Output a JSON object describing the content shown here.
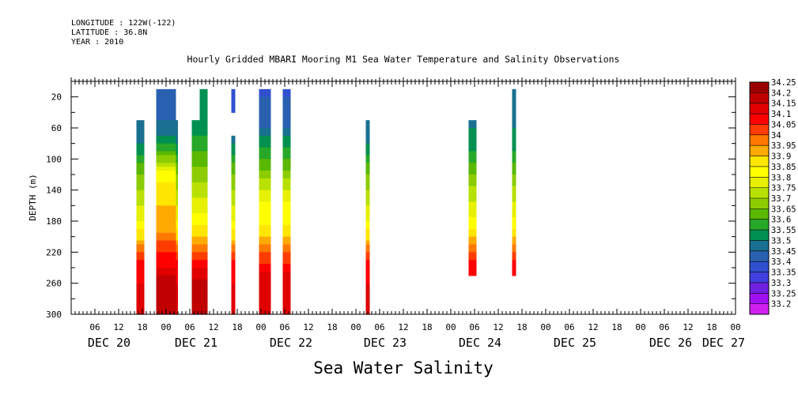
{
  "header": {
    "longitude": "LONGITUDE : 122W(-122)",
    "latitude": "LATITUDE : 36.8N",
    "year": "YEAR : 2010"
  },
  "title": "Hourly Gridded MBARI Mooring M1 Sea Water Temperature and Salinity Observations",
  "bottom_label": "Sea Water Salinity",
  "chart_data": {
    "type": "heatmap",
    "ylabel": "DEPTH (m)",
    "xlabel": "",
    "y_axis": {
      "range": [
        300,
        0
      ],
      "ticks": [
        20,
        60,
        100,
        140,
        180,
        220,
        260,
        300
      ],
      "inverted": true
    },
    "x_axis": {
      "range_hours": [
        0,
        168
      ],
      "hour_tick_labels": [
        "06",
        "12",
        "18",
        "00",
        "06",
        "12",
        "18",
        "00",
        "06",
        "12",
        "18",
        "00",
        "06",
        "12",
        "18",
        "00",
        "06",
        "12",
        "18",
        "00",
        "06",
        "12",
        "18",
        "00",
        "06",
        "12",
        "18",
        "00"
      ],
      "day_labels": [
        "DEC 20",
        "DEC 21",
        "DEC 22",
        "DEC 23",
        "DEC 24",
        "DEC 25",
        "DEC 26",
        "DEC 27"
      ]
    },
    "colorbar": {
      "levels": [
        34.25,
        34.2,
        34.15,
        34.1,
        34.05,
        34,
        33.95,
        33.9,
        33.85,
        33.8,
        33.75,
        33.7,
        33.65,
        33.6,
        33.55,
        33.5,
        33.45,
        33.4,
        33.35,
        33.3,
        33.25,
        33.2
      ],
      "colors": [
        "#9a0000",
        "#c00000",
        "#e00000",
        "#ff0000",
        "#ff3c00",
        "#ff7800",
        "#ffaa00",
        "#ffe600",
        "#ffff00",
        "#e6f000",
        "#b8e000",
        "#8ccc00",
        "#5ab800",
        "#28a828",
        "#009050",
        "#1a7090",
        "#2a60b0",
        "#3050d0",
        "#4040e0",
        "#7020e0",
        "#a010f0",
        "#d020f0"
      ]
    },
    "columns": [
      {
        "start_hour": 16.5,
        "end_hour": 18.5,
        "top": 60,
        "bottom": 300,
        "profile": "A"
      },
      {
        "start_hour": 21.5,
        "end_hour": 23.0,
        "top": 20,
        "bottom": 300,
        "profile": "B"
      },
      {
        "start_hour": 23.0,
        "end_hour": 26.5,
        "top": 20,
        "bottom": 300,
        "profile": "B"
      },
      {
        "start_hour": 26.5,
        "end_hour": 27.0,
        "top": 60,
        "bottom": 300,
        "profile": "A"
      },
      {
        "start_hour": 30.5,
        "end_hour": 32.5,
        "top": 60,
        "bottom": 300,
        "profile": "C"
      },
      {
        "start_hour": 32.5,
        "end_hour": 34.5,
        "top": 20,
        "bottom": 300,
        "profile": "C"
      },
      {
        "start_hour": 40.5,
        "end_hour": 41.5,
        "top": 20,
        "bottom": 40,
        "profile": "D"
      },
      {
        "start_hour": 40.5,
        "end_hour": 41.5,
        "top": 80,
        "bottom": 300,
        "profile": "A"
      },
      {
        "start_hour": 47.5,
        "end_hour": 50.5,
        "top": 20,
        "bottom": 300,
        "profile": "E"
      },
      {
        "start_hour": 53.5,
        "end_hour": 55.5,
        "top": 20,
        "bottom": 300,
        "profile": "E"
      },
      {
        "start_hour": 74.5,
        "end_hour": 75.5,
        "top": 60,
        "bottom": 300,
        "profile": "A"
      },
      {
        "start_hour": 100.5,
        "end_hour": 102.5,
        "top": 60,
        "bottom": 250,
        "profile": "F"
      },
      {
        "start_hour": 111.5,
        "end_hour": 112.5,
        "top": 20,
        "bottom": 250,
        "profile": "F"
      }
    ],
    "profiles": {
      "A": [
        [
          0,
          33.5
        ],
        [
          70,
          33.5
        ],
        [
          85,
          33.58
        ],
        [
          100,
          33.62
        ],
        [
          120,
          33.7
        ],
        [
          140,
          33.75
        ],
        [
          160,
          33.8
        ],
        [
          180,
          33.85
        ],
        [
          205,
          33.95
        ],
        [
          220,
          34.05
        ],
        [
          235,
          34.12
        ],
        [
          260,
          34.15
        ],
        [
          300,
          34.18
        ]
      ],
      "B": [
        [
          0,
          33.48
        ],
        [
          50,
          33.5
        ],
        [
          70,
          33.55
        ],
        [
          85,
          33.62
        ],
        [
          100,
          33.72
        ],
        [
          110,
          33.82
        ],
        [
          125,
          33.88
        ],
        [
          140,
          33.93
        ],
        [
          170,
          33.96
        ],
        [
          195,
          34.0
        ],
        [
          215,
          34.08
        ],
        [
          240,
          34.15
        ],
        [
          255,
          34.22
        ],
        [
          300,
          34.22
        ]
      ],
      "C": [
        [
          0,
          33.55
        ],
        [
          60,
          33.58
        ],
        [
          80,
          33.62
        ],
        [
          100,
          33.68
        ],
        [
          120,
          33.72
        ],
        [
          140,
          33.78
        ],
        [
          160,
          33.82
        ],
        [
          180,
          33.88
        ],
        [
          200,
          33.95
        ],
        [
          220,
          34.05
        ],
        [
          240,
          34.15
        ],
        [
          260,
          34.22
        ],
        [
          300,
          34.2
        ]
      ],
      "D": [
        [
          0,
          33.4
        ],
        [
          300,
          33.4
        ]
      ],
      "E": [
        [
          0,
          33.42
        ],
        [
          60,
          33.5
        ],
        [
          80,
          33.58
        ],
        [
          100,
          33.65
        ],
        [
          120,
          33.72
        ],
        [
          140,
          33.8
        ],
        [
          160,
          33.86
        ],
        [
          180,
          33.88
        ],
        [
          200,
          33.95
        ],
        [
          220,
          34.05
        ],
        [
          240,
          34.12
        ],
        [
          260,
          34.2
        ],
        [
          300,
          34.16
        ]
      ],
      "F": [
        [
          0,
          33.5
        ],
        [
          60,
          33.55
        ],
        [
          80,
          33.58
        ],
        [
          100,
          33.62
        ],
        [
          120,
          33.7
        ],
        [
          140,
          33.76
        ],
        [
          160,
          33.82
        ],
        [
          180,
          33.86
        ],
        [
          200,
          33.95
        ],
        [
          220,
          34.05
        ],
        [
          235,
          34.12
        ],
        [
          250,
          34.15
        ]
      ]
    }
  }
}
